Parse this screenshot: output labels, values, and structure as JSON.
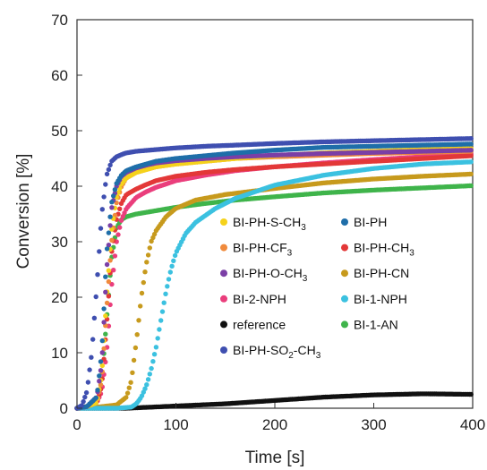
{
  "chart_data": {
    "type": "scatter",
    "title": "",
    "xlabel": "Time [s]",
    "ylabel": "Conversion [%]",
    "xlim": [
      0,
      400
    ],
    "ylim": [
      0,
      70
    ],
    "xticks": [
      0,
      100,
      200,
      300,
      400
    ],
    "yticks": [
      0,
      10,
      20,
      30,
      40,
      50,
      60,
      70
    ],
    "grid": false,
    "legend_position": "center-right, inside plot",
    "series": [
      {
        "name": "BI-PH-S-CH3",
        "label": {
          "base": "BI-PH-S-CH",
          "sub": "3",
          "tail": ""
        },
        "color": "#f5d21b",
        "x": [
          0,
          10,
          20,
          25,
          30,
          35,
          40,
          45,
          50,
          60,
          70,
          80,
          100,
          130,
          160,
          200,
          250,
          300,
          350,
          400
        ],
        "y": [
          0,
          0.3,
          1,
          6,
          20,
          32,
          38,
          40.5,
          41.5,
          42.5,
          43,
          43.5,
          44,
          44.5,
          45,
          45.5,
          46,
          46.3,
          46.6,
          46.8
        ]
      },
      {
        "name": "BI-PH",
        "label": {
          "base": "BI-PH",
          "sub": "",
          "tail": ""
        },
        "color": "#1f6ea9",
        "x": [
          0,
          10,
          20,
          25,
          30,
          35,
          40,
          45,
          50,
          60,
          70,
          80,
          100,
          130,
          160,
          200,
          250,
          300,
          350,
          400
        ],
        "y": [
          0,
          0.3,
          2,
          10,
          28,
          37,
          40.5,
          42,
          42.8,
          43.5,
          44,
          44.5,
          45,
          45.5,
          46,
          46.5,
          47,
          47.2,
          47.4,
          47.6
        ]
      },
      {
        "name": "BI-PH-CF3",
        "label": {
          "base": "BI-PH-CF",
          "sub": "3",
          "tail": ""
        },
        "color": "#f08a3c",
        "x": [
          0,
          10,
          20,
          25,
          30,
          35,
          40,
          45,
          50,
          60,
          70,
          80,
          100,
          130,
          160,
          200,
          250,
          300,
          350,
          400
        ],
        "y": [
          0,
          0.3,
          1,
          5,
          18,
          30,
          37,
          40,
          41.5,
          42.5,
          43,
          43.5,
          44,
          44.5,
          45,
          45.3,
          45.6,
          45.9,
          46.1,
          46.3
        ]
      },
      {
        "name": "BI-PH-CH3",
        "label": {
          "base": "BI-PH-CH",
          "sub": "3",
          "tail": ""
        },
        "color": "#e33838",
        "x": [
          0,
          10,
          20,
          25,
          30,
          35,
          40,
          45,
          50,
          60,
          70,
          80,
          100,
          130,
          160,
          200,
          250,
          300,
          350,
          400
        ],
        "y": [
          0,
          0.3,
          1,
          4,
          15,
          28,
          34,
          37,
          38.5,
          39.5,
          40.3,
          41,
          41.8,
          42.5,
          43,
          43.5,
          44,
          44.5,
          45,
          45.5
        ]
      },
      {
        "name": "BI-PH-O-CH3",
        "label": {
          "base": "BI-PH-O-CH",
          "sub": "3",
          "tail": ""
        },
        "color": "#7b3fa6",
        "x": [
          0,
          10,
          20,
          25,
          30,
          35,
          40,
          45,
          50,
          60,
          70,
          80,
          100,
          130,
          160,
          200,
          250,
          300,
          350,
          400
        ],
        "y": [
          0,
          0.3,
          2,
          8,
          25,
          36,
          40,
          41.8,
          42.5,
          43.3,
          43.8,
          44.2,
          44.6,
          45,
          45.3,
          45.6,
          45.9,
          46.1,
          46.3,
          46.5
        ]
      },
      {
        "name": "BI-PH-CN",
        "label": {
          "base": "BI-PH-CN",
          "sub": "",
          "tail": ""
        },
        "color": "#c79a1d",
        "x": [
          0,
          20,
          40,
          50,
          55,
          60,
          65,
          70,
          75,
          80,
          90,
          100,
          120,
          150,
          200,
          250,
          300,
          350,
          400
        ],
        "y": [
          0,
          0.2,
          0.6,
          2,
          5,
          12,
          20,
          26,
          30,
          32,
          34.5,
          36,
          37.5,
          38.5,
          39.6,
          40.6,
          41.3,
          41.8,
          42.2
        ]
      },
      {
        "name": "BI-2-NPH",
        "label": {
          "base": "BI-2-NPH",
          "sub": "",
          "tail": ""
        },
        "color": "#ea3e7c",
        "x": [
          0,
          10,
          20,
          25,
          30,
          35,
          40,
          45,
          50,
          60,
          70,
          80,
          100,
          130,
          160,
          200,
          250,
          300,
          350,
          400
        ],
        "y": [
          0,
          0.3,
          1,
          3,
          10,
          22,
          30,
          34,
          36,
          38,
          39,
          39.8,
          41,
          42,
          42.8,
          43.5,
          44.2,
          44.8,
          45.3,
          45.8
        ]
      },
      {
        "name": "BI-1-NPH",
        "label": {
          "base": "BI-1-NPH",
          "sub": "",
          "tail": ""
        },
        "color": "#3bc1e0",
        "x": [
          0,
          40,
          55,
          60,
          65,
          70,
          75,
          80,
          85,
          90,
          95,
          100,
          110,
          120,
          140,
          160,
          200,
          250,
          300,
          350,
          400
        ],
        "y": [
          0,
          0,
          0.2,
          0.8,
          2,
          4,
          7,
          11,
          16,
          21,
          25,
          28,
          31.5,
          33.5,
          36,
          37.8,
          40.2,
          42,
          43.2,
          44,
          44.4
        ]
      },
      {
        "name": "reference",
        "label": {
          "base": "reference",
          "sub": "",
          "tail": ""
        },
        "color": "#111111",
        "x": [
          0,
          50,
          100,
          150,
          200,
          250,
          300,
          350,
          400
        ],
        "y": [
          0,
          0,
          0.4,
          0.8,
          1.4,
          2,
          2.4,
          2.6,
          2.5
        ]
      },
      {
        "name": "BI-1-AN",
        "label": {
          "base": "BI-1-AN",
          "sub": "",
          "tail": ""
        },
        "color": "#3fb44b",
        "x": [
          0,
          10,
          20,
          25,
          30,
          35,
          40,
          45,
          50,
          60,
          80,
          100,
          130,
          160,
          200,
          250,
          300,
          350,
          400
        ],
        "y": [
          0,
          0.3,
          1,
          5,
          16,
          27,
          32.5,
          34,
          34.5,
          35,
          35.6,
          36.2,
          36.9,
          37.5,
          38.1,
          38.8,
          39.3,
          39.7,
          40.1
        ]
      },
      {
        "name": "BI-PH-SO2-CH3",
        "label": {
          "base": "BI-PH-SO",
          "sub": "2",
          "tail": "-CH3"
        },
        "color": "#3f4fb0",
        "x": [
          0,
          5,
          10,
          15,
          20,
          25,
          30,
          35,
          40,
          45,
          50,
          60,
          80,
          100,
          130,
          160,
          200,
          250,
          300,
          350,
          400
        ],
        "y": [
          0,
          0.5,
          3,
          10,
          22,
          35,
          42,
          44.5,
          45.3,
          45.7,
          46,
          46.3,
          46.6,
          46.9,
          47.2,
          47.4,
          47.7,
          48,
          48.2,
          48.4,
          48.6
        ]
      }
    ]
  }
}
